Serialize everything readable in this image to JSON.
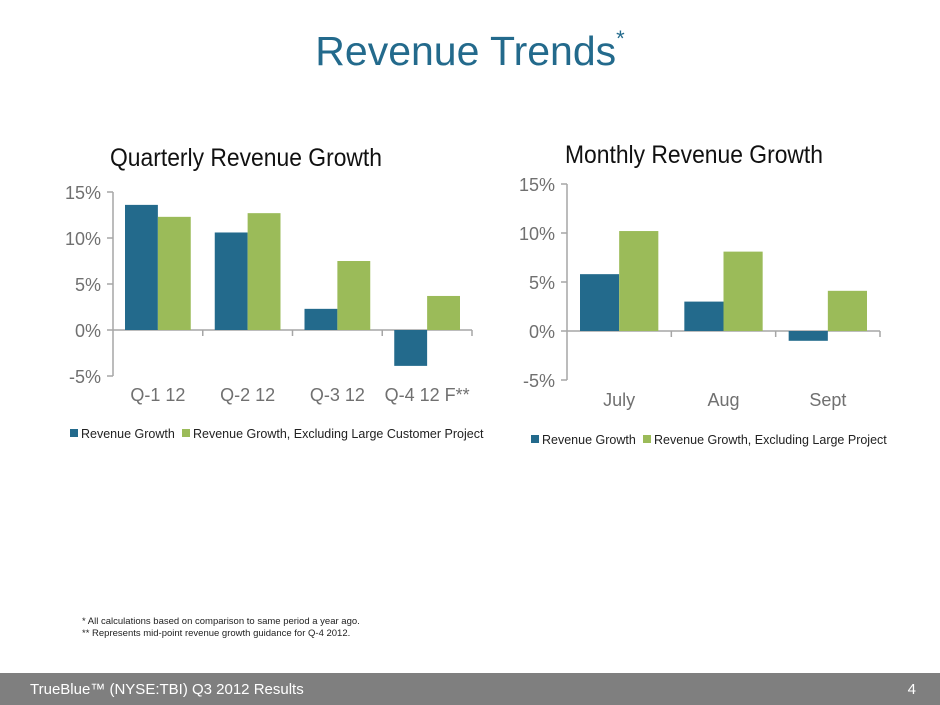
{
  "slide": {
    "title": "Revenue Trends",
    "title_marker": "*",
    "notes": [
      "* All calculations based on comparison to same period a year ago.",
      "** Represents mid-point revenue growth guidance for Q-4 2012."
    ],
    "footer": "TrueBlue™ (NYSE:TBI) Q3 2012 Results",
    "page_number": "4"
  },
  "colors": {
    "title": "#236a8c",
    "series_blue": "#236a8c",
    "series_green": "#9bbb59",
    "axis": "#a6a6a6",
    "footer_bg": "#7f7f7f"
  },
  "chart_data": [
    {
      "type": "bar",
      "title": "Quarterly Revenue Growth",
      "categories": [
        "Q-1 12",
        "Q-2 12",
        "Q-3 12",
        "Q-4 12 F**"
      ],
      "series": [
        {
          "name": "Revenue Growth",
          "values": [
            13.6,
            10.6,
            2.3,
            -3.9
          ]
        },
        {
          "name": "Revenue Growth,  Excluding Large Customer Project",
          "values": [
            12.3,
            12.7,
            7.5,
            3.7
          ]
        }
      ],
      "yticks": [
        "-5%",
        "0%",
        "5%",
        "10%",
        "15%"
      ],
      "ylim": [
        -5,
        15
      ],
      "xlabel": "",
      "ylabel": "",
      "grid": false,
      "legend": "bottom"
    },
    {
      "type": "bar",
      "title": "Monthly Revenue Growth",
      "categories": [
        "July",
        "Aug",
        "Sept"
      ],
      "series": [
        {
          "name": "Revenue Growth",
          "values": [
            5.8,
            3.0,
            -1.0
          ]
        },
        {
          "name": "Revenue Growth,  Excluding Large Project",
          "values": [
            10.2,
            8.1,
            4.1
          ]
        }
      ],
      "yticks": [
        "-5%",
        "0%",
        "5%",
        "10%",
        "15%"
      ],
      "ylim": [
        -5,
        15
      ],
      "xlabel": "",
      "ylabel": "",
      "grid": false,
      "legend": "bottom"
    }
  ]
}
